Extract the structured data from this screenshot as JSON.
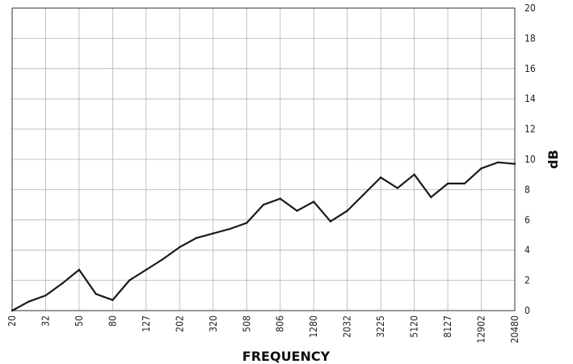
{
  "chart_data": {
    "type": "line",
    "title": "",
    "xlabel": "FREQUENCY",
    "ylabel": "dB",
    "ylim": [
      0,
      20
    ],
    "y_ticks": [
      "0",
      "2",
      "4",
      "6",
      "8",
      "10",
      "12",
      "14",
      "16",
      "18",
      "20"
    ],
    "x_tick_labels": [
      "20",
      "32",
      "50",
      "80",
      "127",
      "202",
      "320",
      "508",
      "806",
      "1280",
      "2032",
      "3225",
      "5120",
      "8127",
      "12902",
      "20480"
    ],
    "grid": true,
    "line_color": "#1a1a1a",
    "x": [
      20,
      25,
      32,
      40,
      50,
      63,
      80,
      101,
      127,
      160,
      202,
      254,
      320,
      403,
      508,
      640,
      806,
      1016,
      1280,
      1613,
      2032,
      2560,
      3225,
      4064,
      5120,
      6451,
      8127,
      10240,
      12902,
      16255,
      20480
    ],
    "values": [
      0.0,
      0.6,
      1.0,
      1.8,
      2.7,
      1.1,
      0.7,
      2.0,
      2.7,
      3.4,
      4.2,
      4.8,
      5.1,
      5.4,
      5.8,
      7.0,
      7.4,
      6.6,
      7.2,
      5.9,
      6.6,
      7.7,
      8.8,
      8.1,
      9.0,
      7.5,
      8.4,
      8.4,
      9.4,
      9.8,
      9.7
    ]
  }
}
